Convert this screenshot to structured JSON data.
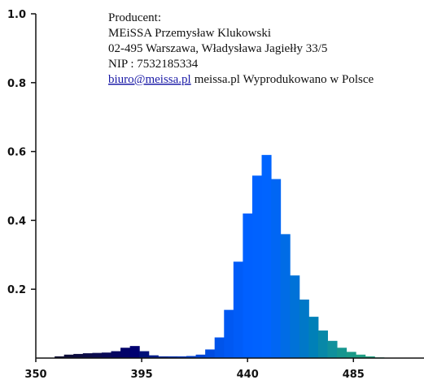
{
  "chart_data": {
    "type": "spectrum",
    "annotation": [
      "Producent:",
      "MEiSSA Przemysław Klukowski",
      "02-495 Warszawa, Władysława Jagiełły 33/5",
      "NIP : 7532185334"
    ],
    "link": "biuro@meissa.pl",
    "link_suffix": "meissa.pl Wyprodukowano w Polsce",
    "x": [
      360,
      364,
      368,
      372,
      376,
      380,
      384,
      388,
      392,
      396,
      400,
      404,
      408,
      412,
      416,
      420,
      424,
      428,
      432,
      436,
      440,
      444,
      448,
      452,
      456,
      460,
      464,
      468,
      472,
      476,
      480,
      484,
      488,
      492,
      496
    ],
    "values": [
      0.005,
      0.01,
      0.012,
      0.014,
      0.015,
      0.016,
      0.02,
      0.03,
      0.035,
      0.02,
      0.008,
      0.005,
      0.005,
      0.005,
      0.006,
      0.01,
      0.025,
      0.06,
      0.14,
      0.28,
      0.42,
      0.53,
      0.59,
      0.52,
      0.36,
      0.24,
      0.17,
      0.12,
      0.08,
      0.05,
      0.03,
      0.018,
      0.01,
      0.005,
      0.002
    ],
    "colors": [
      "#0a0a30",
      "#0b0b38",
      "#0c0c40",
      "#0c0c48",
      "#0c0c50",
      "#0a0a58",
      "#060660",
      "#030368",
      "#000070",
      "#001078",
      "#001c88",
      "#002498",
      "#002ca8",
      "#0034b8",
      "#003cc8",
      "#0044d4",
      "#004ce0",
      "#0054ea",
      "#0058f2",
      "#005cf8",
      "#0060ff",
      "#0062ff",
      "#0064ff",
      "#0066f4",
      "#006ce6",
      "#0072d8",
      "#0078c8",
      "#0080b8",
      "#0888a8",
      "#10909c",
      "#16968f",
      "#1a9a88",
      "#1e9e84",
      "#22a082",
      "#24a280"
    ],
    "xlim": [
      350,
      515
    ],
    "ylim": [
      0,
      1
    ],
    "xticks": [
      350,
      395,
      440,
      485
    ],
    "yticks": [
      0.2,
      0.4,
      0.6,
      0.8,
      {
        "value": 1,
        "label": "1.0"
      }
    ]
  }
}
